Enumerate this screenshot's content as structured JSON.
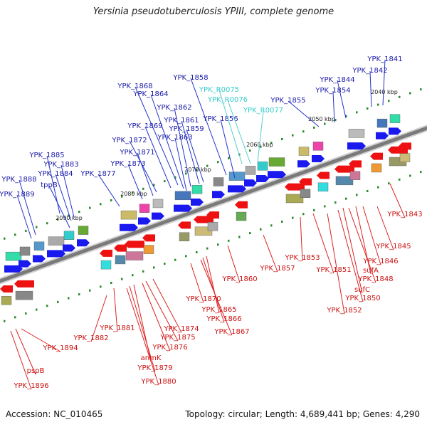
{
  "title": "Yersinia pseudotuberculosis YPIII, complete genome",
  "footer": {
    "accession": "Accession: NC_010465",
    "topology": "Topology: circular; Length: 4,689,441 bp; Genes: 4,290"
  },
  "colors": {
    "forward_label": "#1a1aaa",
    "reverse_label": "#cc1111",
    "rna_label": "#33cccc",
    "forward_gene": "#1a1aee",
    "reverse_gene": "#ee1111",
    "axis": "#7a7a7a",
    "tick": "#2a8a2a"
  },
  "scale_labels": [
    "2040 kbp",
    "2050 kbp",
    "2060 kbp",
    "2070 kbp",
    "2080 kbp",
    "2090 kbp"
  ],
  "forward_labels": [
    "YPK_1841",
    "YPK_1842",
    "YPK_1844",
    "YPK_1854",
    "YPK_1855",
    "YPK_1858",
    "YPK_1868",
    "YPK_1864",
    "YPK_1862",
    "YPK_1861",
    "YPK_1869",
    "YPK_1859",
    "YPK_1856",
    "YPK_1863",
    "YPK_1872",
    "YPK_1871",
    "YPK_1873",
    "YPK_1877",
    "YPK_1885",
    "YPK_1883",
    "YPK_1884",
    "YPK_1888",
    "tppB",
    "YPK_1889"
  ],
  "rna_labels": [
    "YPK_R0075",
    "YPK_R0076",
    "YPK_R0077"
  ],
  "reverse_labels": [
    "YPK_1843",
    "YPK_1845",
    "YPK_1846",
    "sufA",
    "YPK_1848",
    "sufC",
    "YPK_1850",
    "YPK_1852",
    "YPK_1851",
    "YPK_1853",
    "YPK_1857",
    "YPK_1860",
    "YPK_1865",
    "YPK_1866",
    "YPK_1867",
    "YPK_1870",
    "YPK_1874",
    "YPK_1875",
    "YPK_1876",
    "anmK",
    "YPK_1879",
    "YPK_1880",
    "YPK_1881",
    "YPK_1882",
    "YPK_1894",
    "pspB",
    "YPK_1896"
  ]
}
